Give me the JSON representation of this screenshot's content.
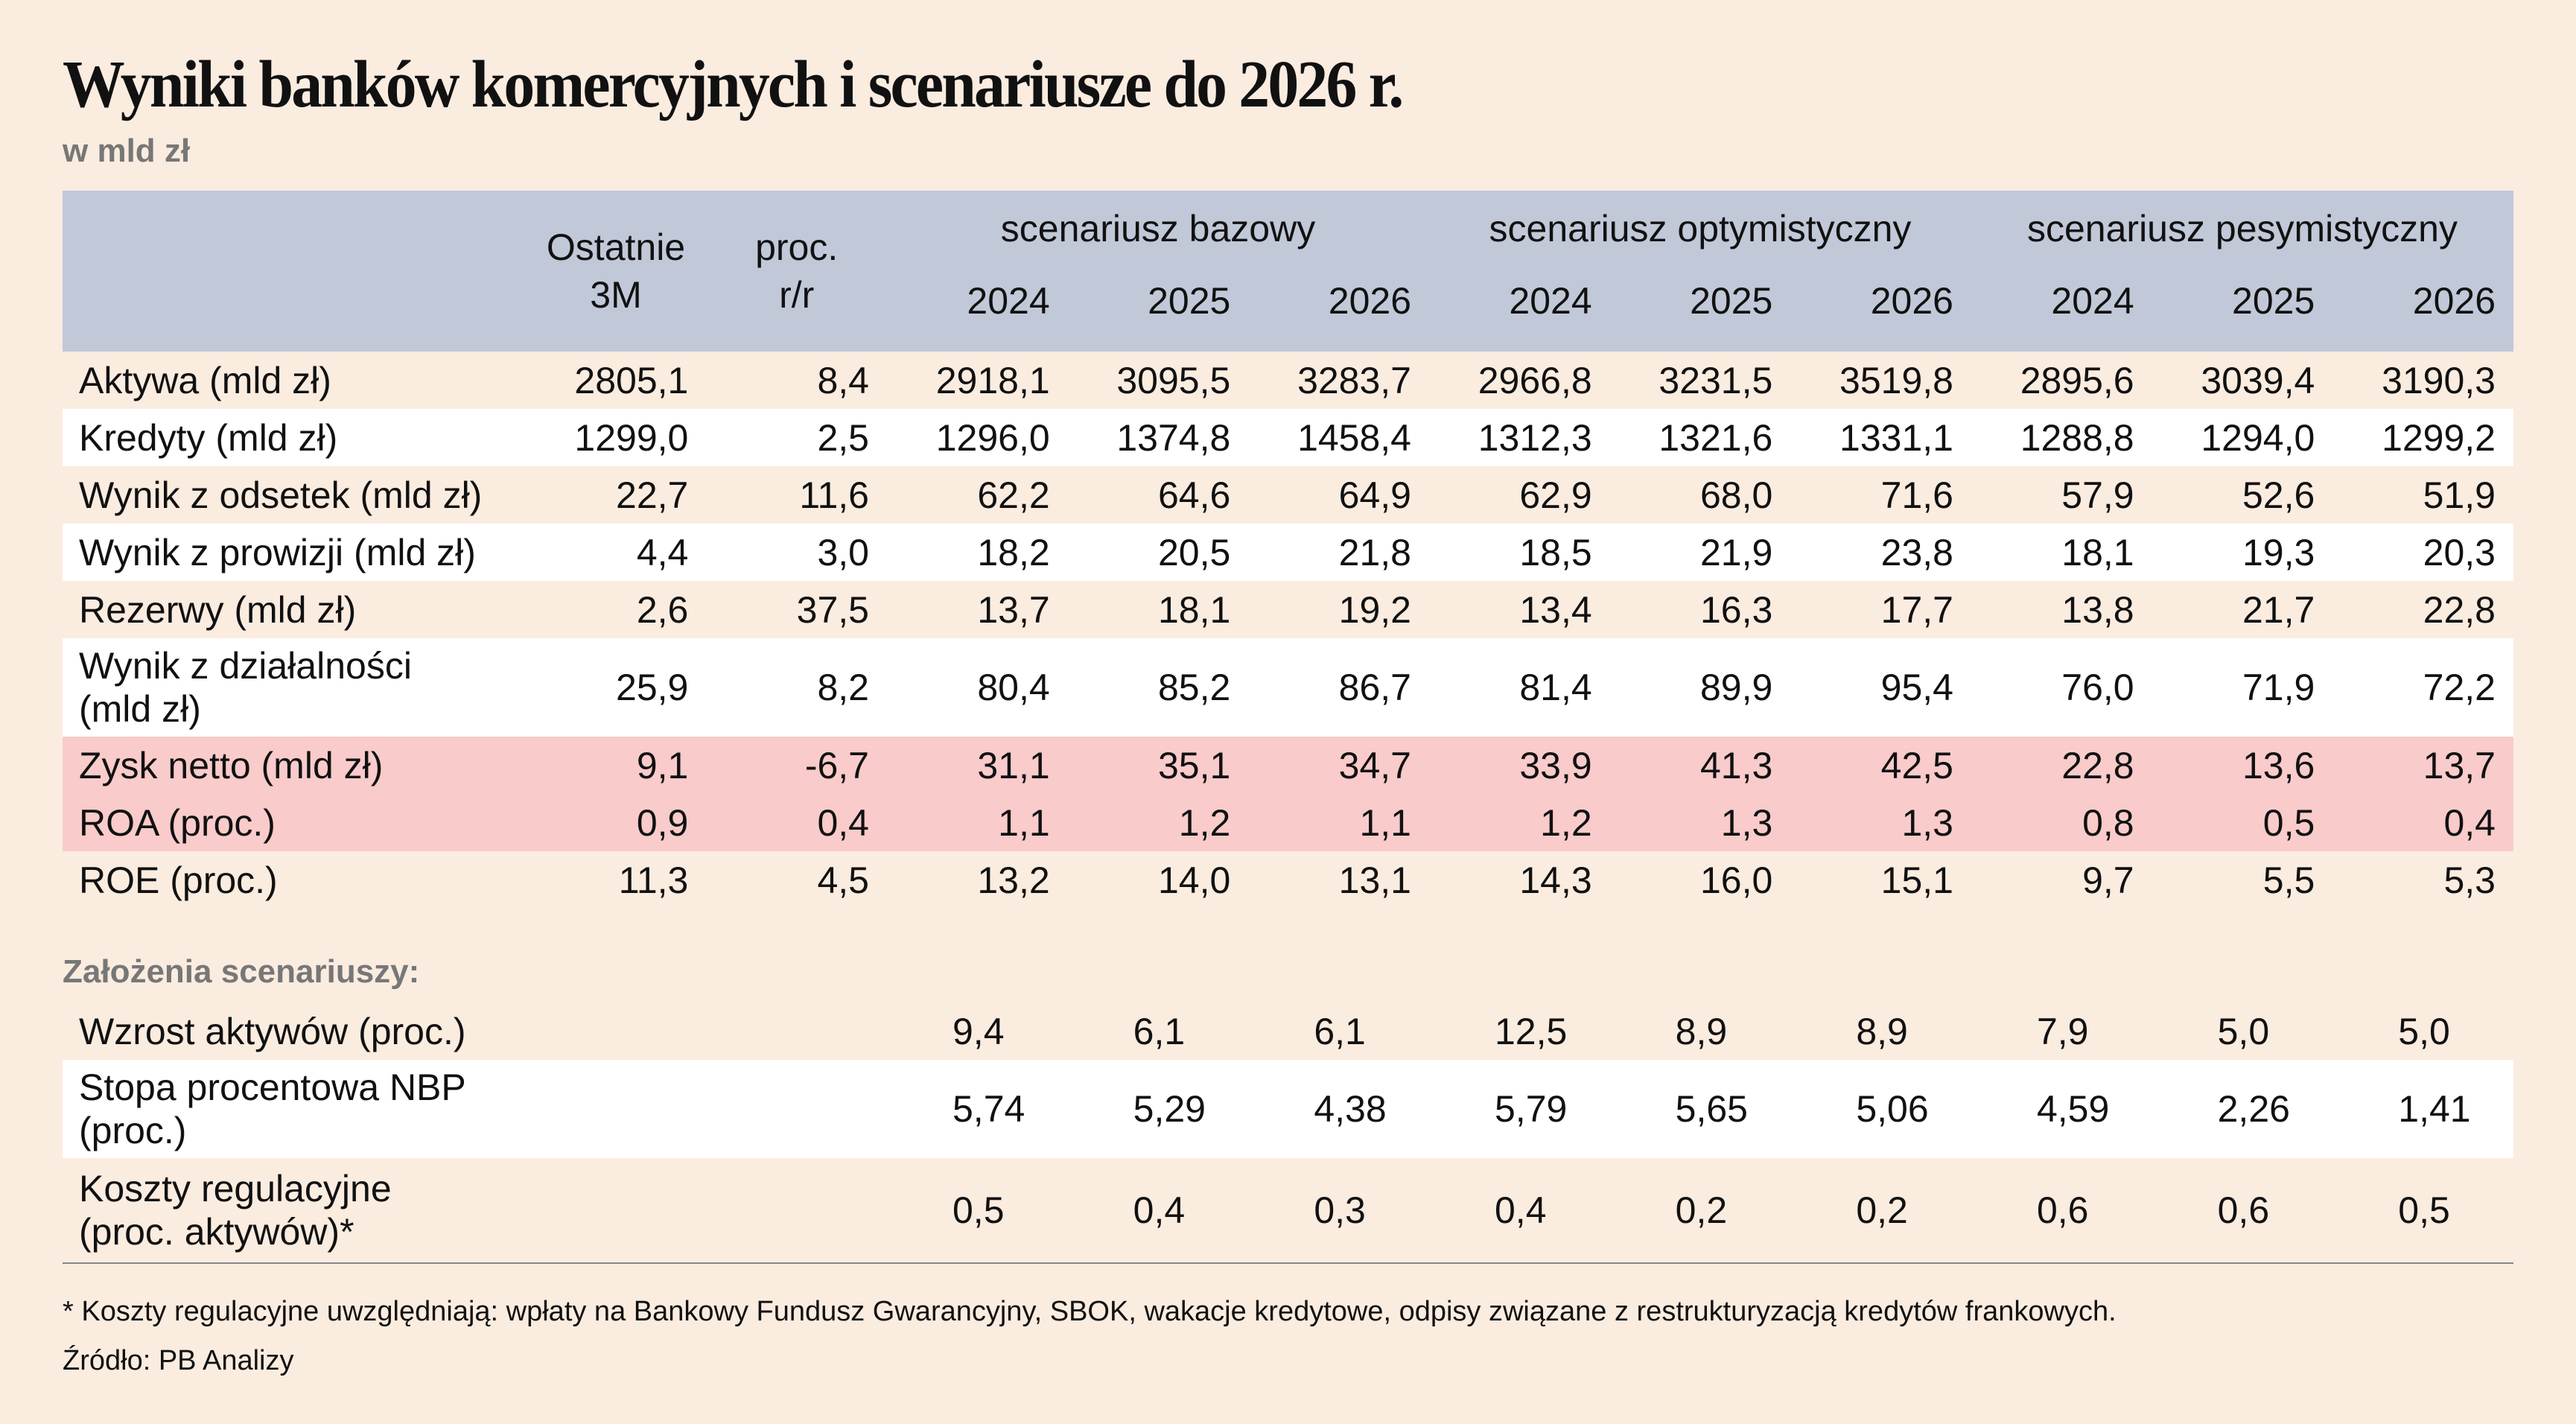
{
  "title": "Wyniki banków komercyjnych i scenariusze do 2026 r.",
  "subtitle": "w mld zł",
  "header": {
    "col_ostatnie": [
      "Ostatnie",
      "3M"
    ],
    "col_proc": [
      "proc.",
      "r/r"
    ],
    "groups": [
      "scenariusz bazowy",
      "scenariusz optymistyczny",
      "scenariusz pesymistyczny"
    ],
    "years": [
      "2024",
      "2025",
      "2026",
      "2024",
      "2025",
      "2026",
      "2024",
      "2025",
      "2026"
    ]
  },
  "rows": [
    {
      "label": "Aktywa (mld zł)",
      "values": [
        "2805,1",
        "8,4",
        "2918,1",
        "3095,5",
        "3283,7",
        "2966,8",
        "3231,5",
        "3519,8",
        "2895,6",
        "3039,4",
        "3190,3"
      ],
      "style": ""
    },
    {
      "label": "Kredyty (mld zł)",
      "values": [
        "1299,0",
        "2,5",
        "1296,0",
        "1374,8",
        "1458,4",
        "1312,3",
        "1321,6",
        "1331,1",
        "1288,8",
        "1294,0",
        "1299,2"
      ],
      "style": "white"
    },
    {
      "label": "Wynik z odsetek (mld zł)",
      "values": [
        "22,7",
        "11,6",
        "62,2",
        "64,6",
        "64,9",
        "62,9",
        "68,0",
        "71,6",
        "57,9",
        "52,6",
        "51,9"
      ],
      "style": ""
    },
    {
      "label": "Wynik z prowizji (mld zł)",
      "values": [
        "4,4",
        "3,0",
        "18,2",
        "20,5",
        "21,8",
        "18,5",
        "21,9",
        "23,8",
        "18,1",
        "19,3",
        "20,3"
      ],
      "style": "white"
    },
    {
      "label": "Rezerwy (mld zł)",
      "values": [
        "2,6",
        "37,5",
        "13,7",
        "18,1",
        "19,2",
        "13,4",
        "16,3",
        "17,7",
        "13,8",
        "21,7",
        "22,8"
      ],
      "style": ""
    },
    {
      "label": "Wynik z działalności\n(mld zł)",
      "values": [
        "25,9",
        "8,2",
        "80,4",
        "85,2",
        "86,7",
        "81,4",
        "89,9",
        "95,4",
        "76,0",
        "71,9",
        "72,2"
      ],
      "style": "white tall"
    },
    {
      "label": "Zysk netto (mld zł)",
      "values": [
        "9,1",
        "-6,7",
        "31,1",
        "35,1",
        "34,7",
        "33,9",
        "41,3",
        "42,5",
        "22,8",
        "13,6",
        "13,7"
      ],
      "style": "pink"
    },
    {
      "label": "ROA (proc.)",
      "values": [
        "0,9",
        "0,4",
        "1,1",
        "1,2",
        "1,1",
        "1,2",
        "1,3",
        "1,3",
        "0,8",
        "0,5",
        "0,4"
      ],
      "style": "pink"
    },
    {
      "label": "ROE (proc.)",
      "values": [
        "11,3",
        "4,5",
        "13,2",
        "14,0",
        "13,1",
        "14,3",
        "16,0",
        "15,1",
        "9,7",
        "5,5",
        "5,3"
      ],
      "style": ""
    }
  ],
  "assumptions_title": "Założenia scenariuszy:",
  "assumptions": [
    {
      "label": "Wzrost aktywów (proc.)",
      "values": [
        "9,4",
        "6,1",
        "6,1",
        "12,5",
        "8,9",
        "8,9",
        "7,9",
        "5,0",
        "5,0"
      ],
      "style": ""
    },
    {
      "label": "Stopa procentowa NBP\n(proc.)",
      "values": [
        "5,74",
        "5,29",
        "4,38",
        "5,79",
        "5,65",
        "5,06",
        "4,59",
        "2,26",
        "1,41"
      ],
      "style": "white tall"
    },
    {
      "label": "Koszty regulacyjne\n(proc. aktywów)*",
      "values": [
        "0,5",
        "0,4",
        "0,3",
        "0,4",
        "0,2",
        "0,2",
        "0,6",
        "0,6",
        "0,5"
      ],
      "style": "tall2 last"
    }
  ],
  "footnote": "* Koszty regulacyjne uwzględniają: wpłaty na Bankowy Fundusz Gwarancyjny, SBOK, wakacje kredytowe, odpisy związane z restrukturyzacją kredytów frankowych.",
  "source": "Źródło: PB Analizy",
  "colors": {
    "background": "#fbece0",
    "header": "#c1c8d8",
    "highlight": "#f9cbcb",
    "stripe": "#ffffff"
  }
}
